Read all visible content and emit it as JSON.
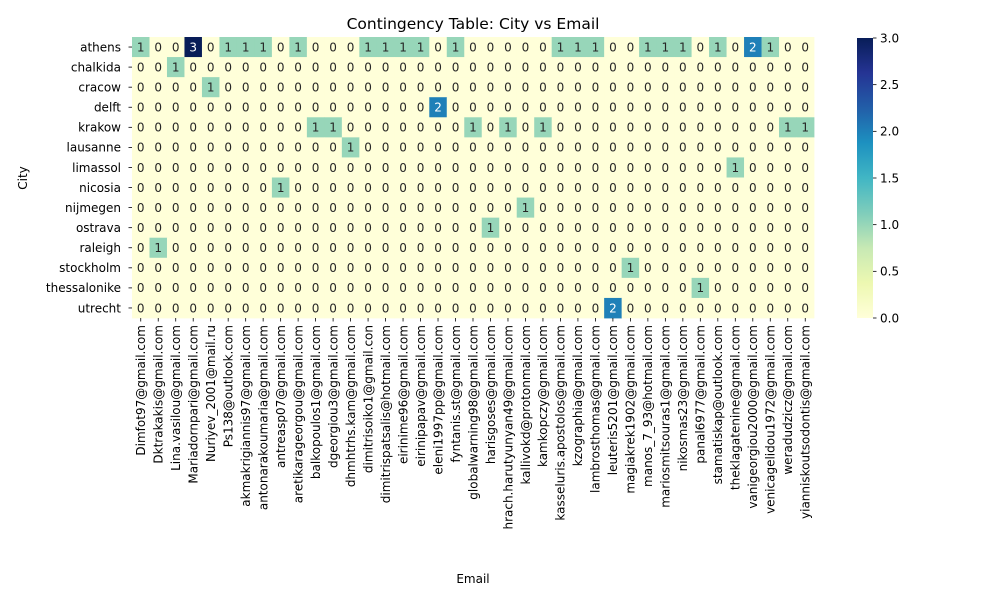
{
  "chart_data": {
    "type": "heatmap",
    "title": "Contingency Table: City vs Email",
    "xlabel": "Email",
    "ylabel": "City",
    "rows": [
      "athens",
      "chalkida",
      "cracow",
      "delft",
      "krakow",
      "lausanne",
      "limassol",
      "nicosia",
      "nijmegen",
      "ostrava",
      "raleigh",
      "stockholm",
      "thessalonike",
      "utrecht"
    ],
    "columns": [
      "Dimfot97@gmail.com",
      "Dktrakakis@gmail.com",
      "Lina.vasilou@gmail.com",
      "Mariadornpari@gmail.com",
      "Nuriyev_2001@mail.ru",
      "Ps138@outlook.com",
      "akmakrigiannis97@gmail.com",
      "antonarakoumaria@gmail.com",
      "antreasp07@gmail.com",
      "aretikarageorgou@gmail.com",
      "balkopoulos1@gmail.com",
      "dgeorgiou3@gmail.com",
      "dhmhtrhs.kam@gmail.com",
      "dimitrisoiko1@gmail.con",
      "dimitrispatsalis@hotmail.com",
      "eirinime96@gmail.com",
      "eirinipapav@gmail.com",
      "eleni1997pp@gmail.com",
      "fyntanis.st@gmail.com",
      "globalwarning98@gmail.com",
      "harisgoses@gmail.com",
      "hrach.harutyunyan49@gmail.com",
      "kallivokd@protonmail.com",
      "kamkopczy@gmail.com",
      "kasseluris.apostolos@gmail.com",
      "kzographia@gmail.com",
      "lambrosthomas@gmail.com",
      "leuteris5201@gmail.com",
      "magiakrek1902@gmail.com",
      "manos_7_93@hotmail.com",
      "mariosmitsouras1@gmail.com",
      "nikosmas23@gmail.com",
      "panal6977@gmail.com",
      "stamatiskap@outlook.com",
      "theklagatenine@gmail.com",
      "vanigeorgiou2000@gmail.com",
      "venicagelidou1972@gmail.com",
      "weradudzicz@gmail.com",
      "yianniskoutsodontis@gmail.com"
    ],
    "values": [
      [
        1,
        0,
        0,
        3,
        0,
        1,
        1,
        1,
        0,
        1,
        0,
        0,
        0,
        1,
        1,
        1,
        1,
        0,
        1,
        0,
        0,
        0,
        0,
        0,
        1,
        1,
        1,
        0,
        0,
        1,
        1,
        1,
        0,
        1,
        0,
        2,
        1,
        0,
        0
      ],
      [
        0,
        0,
        1,
        0,
        0,
        0,
        0,
        0,
        0,
        0,
        0,
        0,
        0,
        0,
        0,
        0,
        0,
        0,
        0,
        0,
        0,
        0,
        0,
        0,
        0,
        0,
        0,
        0,
        0,
        0,
        0,
        0,
        0,
        0,
        0,
        0,
        0,
        0,
        0
      ],
      [
        0,
        0,
        0,
        0,
        1,
        0,
        0,
        0,
        0,
        0,
        0,
        0,
        0,
        0,
        0,
        0,
        0,
        0,
        0,
        0,
        0,
        0,
        0,
        0,
        0,
        0,
        0,
        0,
        0,
        0,
        0,
        0,
        0,
        0,
        0,
        0,
        0,
        0,
        0
      ],
      [
        0,
        0,
        0,
        0,
        0,
        0,
        0,
        0,
        0,
        0,
        0,
        0,
        0,
        0,
        0,
        0,
        0,
        2,
        0,
        0,
        0,
        0,
        0,
        0,
        0,
        0,
        0,
        0,
        0,
        0,
        0,
        0,
        0,
        0,
        0,
        0,
        0,
        0,
        0
      ],
      [
        0,
        0,
        0,
        0,
        0,
        0,
        0,
        0,
        0,
        0,
        1,
        1,
        0,
        0,
        0,
        0,
        0,
        0,
        0,
        1,
        0,
        1,
        0,
        1,
        0,
        0,
        0,
        0,
        0,
        0,
        0,
        0,
        0,
        0,
        0,
        0,
        0,
        1,
        1
      ],
      [
        0,
        0,
        0,
        0,
        0,
        0,
        0,
        0,
        0,
        0,
        0,
        0,
        1,
        0,
        0,
        0,
        0,
        0,
        0,
        0,
        0,
        0,
        0,
        0,
        0,
        0,
        0,
        0,
        0,
        0,
        0,
        0,
        0,
        0,
        0,
        0,
        0,
        0,
        0
      ],
      [
        0,
        0,
        0,
        0,
        0,
        0,
        0,
        0,
        0,
        0,
        0,
        0,
        0,
        0,
        0,
        0,
        0,
        0,
        0,
        0,
        0,
        0,
        0,
        0,
        0,
        0,
        0,
        0,
        0,
        0,
        0,
        0,
        0,
        0,
        1,
        0,
        0,
        0,
        0
      ],
      [
        0,
        0,
        0,
        0,
        0,
        0,
        0,
        0,
        1,
        0,
        0,
        0,
        0,
        0,
        0,
        0,
        0,
        0,
        0,
        0,
        0,
        0,
        0,
        0,
        0,
        0,
        0,
        0,
        0,
        0,
        0,
        0,
        0,
        0,
        0,
        0,
        0,
        0,
        0
      ],
      [
        0,
        0,
        0,
        0,
        0,
        0,
        0,
        0,
        0,
        0,
        0,
        0,
        0,
        0,
        0,
        0,
        0,
        0,
        0,
        0,
        0,
        0,
        1,
        0,
        0,
        0,
        0,
        0,
        0,
        0,
        0,
        0,
        0,
        0,
        0,
        0,
        0,
        0,
        0
      ],
      [
        0,
        0,
        0,
        0,
        0,
        0,
        0,
        0,
        0,
        0,
        0,
        0,
        0,
        0,
        0,
        0,
        0,
        0,
        0,
        0,
        1,
        0,
        0,
        0,
        0,
        0,
        0,
        0,
        0,
        0,
        0,
        0,
        0,
        0,
        0,
        0,
        0,
        0,
        0
      ],
      [
        0,
        1,
        0,
        0,
        0,
        0,
        0,
        0,
        0,
        0,
        0,
        0,
        0,
        0,
        0,
        0,
        0,
        0,
        0,
        0,
        0,
        0,
        0,
        0,
        0,
        0,
        0,
        0,
        0,
        0,
        0,
        0,
        0,
        0,
        0,
        0,
        0,
        0,
        0
      ],
      [
        0,
        0,
        0,
        0,
        0,
        0,
        0,
        0,
        0,
        0,
        0,
        0,
        0,
        0,
        0,
        0,
        0,
        0,
        0,
        0,
        0,
        0,
        0,
        0,
        0,
        0,
        0,
        0,
        1,
        0,
        0,
        0,
        0,
        0,
        0,
        0,
        0,
        0,
        0
      ],
      [
        0,
        0,
        0,
        0,
        0,
        0,
        0,
        0,
        0,
        0,
        0,
        0,
        0,
        0,
        0,
        0,
        0,
        0,
        0,
        0,
        0,
        0,
        0,
        0,
        0,
        0,
        0,
        0,
        0,
        0,
        0,
        0,
        1,
        0,
        0,
        0,
        0,
        0,
        0
      ],
      [
        0,
        0,
        0,
        0,
        0,
        0,
        0,
        0,
        0,
        0,
        0,
        0,
        0,
        0,
        0,
        0,
        0,
        0,
        0,
        0,
        0,
        0,
        0,
        0,
        0,
        0,
        0,
        2,
        0,
        0,
        0,
        0,
        0,
        0,
        0,
        0,
        0,
        0,
        0
      ]
    ],
    "colorbar": {
      "min": 0.0,
      "max": 3.0,
      "ticks": [
        "0.0",
        "0.5",
        "1.0",
        "1.5",
        "2.0",
        "2.5",
        "3.0"
      ],
      "colormap": [
        "#ffffd9",
        "#edf8b1",
        "#c7e9b4",
        "#7fcdbb",
        "#41b6c4",
        "#1d91c0",
        "#225ea8",
        "#253494",
        "#081d58"
      ]
    },
    "annotations": true,
    "grid": false,
    "legend": "right"
  }
}
